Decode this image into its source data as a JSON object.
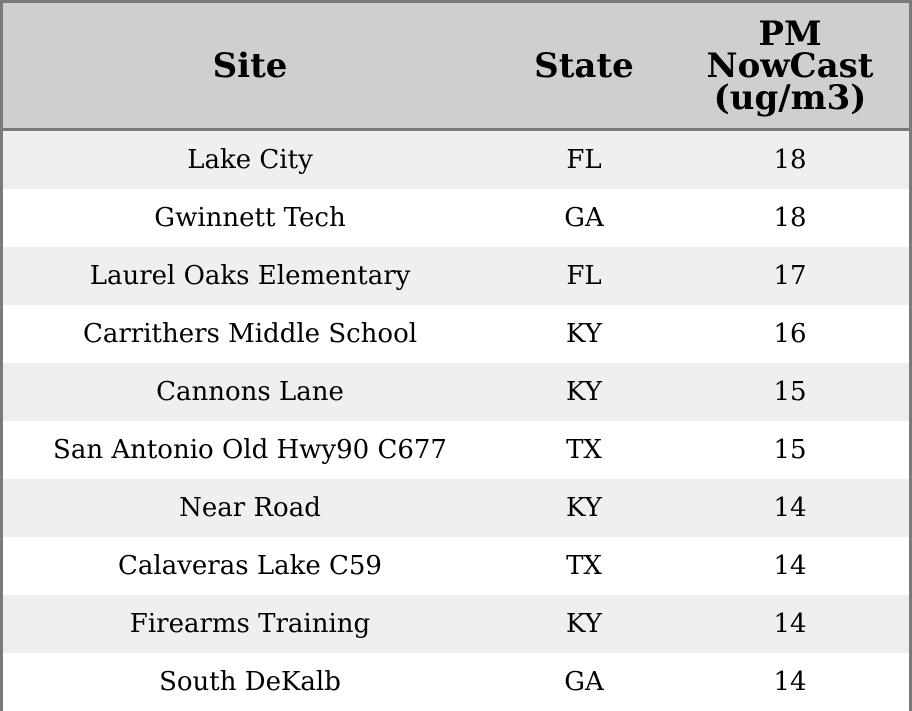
{
  "table": {
    "headers": {
      "site": "Site",
      "state": "State",
      "pm_line1": "PM",
      "pm_line2": "NowCast",
      "pm_line3": "(ug/m3)"
    },
    "rows": [
      {
        "site": "Lake City",
        "state": "FL",
        "value": "18"
      },
      {
        "site": "Gwinnett Tech",
        "state": "GA",
        "value": "18"
      },
      {
        "site": "Laurel Oaks Elementary",
        "state": "FL",
        "value": "17"
      },
      {
        "site": "Carrithers Middle School",
        "state": "KY",
        "value": "16"
      },
      {
        "site": "Cannons Lane",
        "state": "KY",
        "value": "15"
      },
      {
        "site": "San Antonio Old Hwy90 C677",
        "state": "TX",
        "value": "15"
      },
      {
        "site": "Near Road",
        "state": "KY",
        "value": "14"
      },
      {
        "site": "Calaveras Lake C59",
        "state": "TX",
        "value": "14"
      },
      {
        "site": "Firearms Training",
        "state": "KY",
        "value": "14"
      },
      {
        "site": "South DeKalb",
        "state": "GA",
        "value": "14"
      }
    ]
  }
}
